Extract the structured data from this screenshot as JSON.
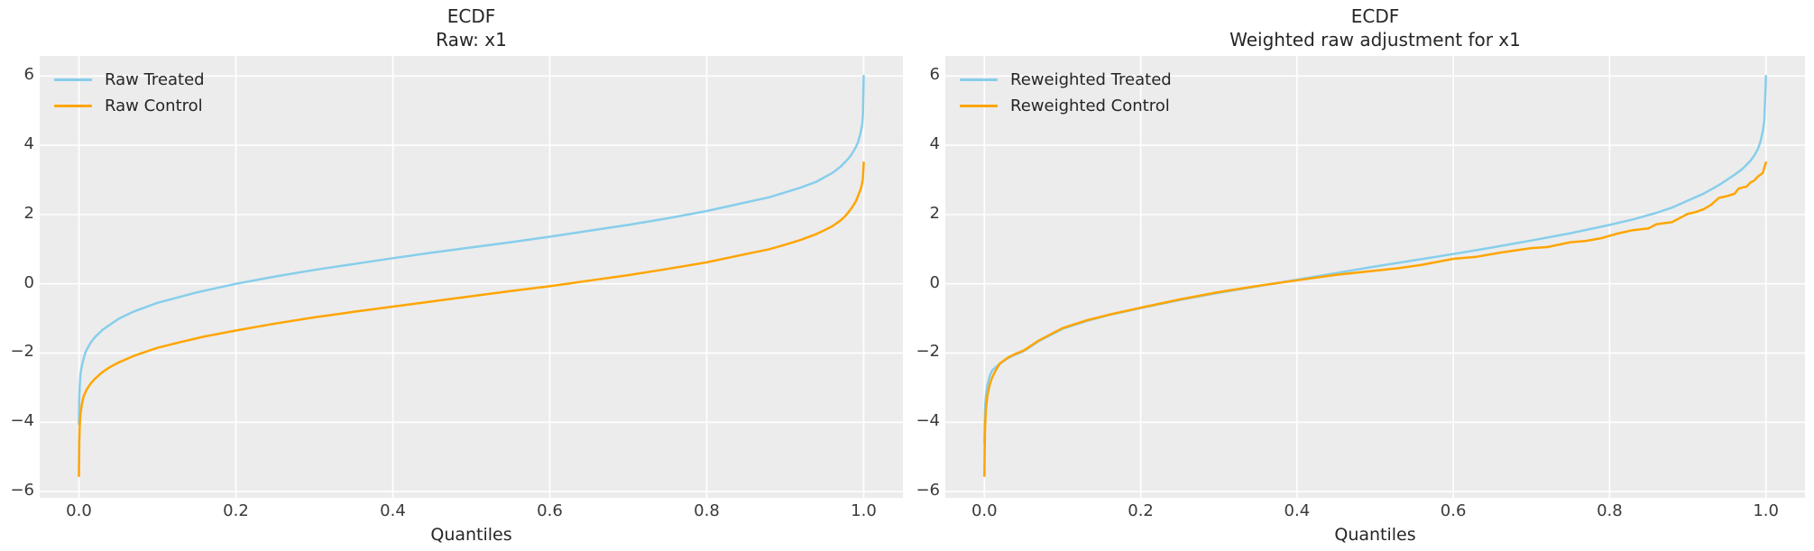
{
  "figure": {
    "background": "#ffffff",
    "axes_background": "#ececec",
    "grid_color": "#ffffff",
    "text_color": "#262626",
    "treated_color": "#87CEEB",
    "control_color": "#FFA500"
  },
  "chart_data": [
    {
      "type": "line",
      "title": "ECDF",
      "subtitle": "Raw: x1",
      "xlabel": "Quantiles",
      "ylabel": "",
      "xlim": [
        -0.05,
        1.05
      ],
      "ylim": [
        -6.18,
        6.58
      ],
      "xticks": [
        0.0,
        0.2,
        0.4,
        0.6,
        0.8,
        1.0
      ],
      "xtick_labels": [
        "0.0",
        "0.2",
        "0.4",
        "0.6",
        "0.8",
        "1.0"
      ],
      "yticks": [
        -6,
        -4,
        -2,
        0,
        2,
        4,
        6
      ],
      "ytick_labels": [
        "−6",
        "−4",
        "−2",
        "0",
        "2",
        "4",
        "6"
      ],
      "grid": true,
      "legend_position": "upper-left",
      "series": [
        {
          "name": "Raw Treated",
          "color": "#87CEEB",
          "points": [
            [
              0,
              -4.05
            ],
            [
              0.0005,
              -3.3
            ],
            [
              0.001,
              -2.95
            ],
            [
              0.002,
              -2.6
            ],
            [
              0.003,
              -2.45
            ],
            [
              0.005,
              -2.25
            ],
            [
              0.008,
              -2.0
            ],
            [
              0.01,
              -1.9
            ],
            [
              0.015,
              -1.7
            ],
            [
              0.02,
              -1.55
            ],
            [
              0.03,
              -1.33
            ],
            [
              0.05,
              -1.02
            ],
            [
              0.07,
              -0.8
            ],
            [
              0.1,
              -0.55
            ],
            [
              0.15,
              -0.25
            ],
            [
              0.2,
              0.0
            ],
            [
              0.25,
              0.21
            ],
            [
              0.3,
              0.4
            ],
            [
              0.35,
              0.57
            ],
            [
              0.4,
              0.74
            ],
            [
              0.45,
              0.9
            ],
            [
              0.5,
              1.05
            ],
            [
              0.55,
              1.2
            ],
            [
              0.6,
              1.36
            ],
            [
              0.65,
              1.53
            ],
            [
              0.7,
              1.7
            ],
            [
              0.75,
              1.89
            ],
            [
              0.8,
              2.1
            ],
            [
              0.85,
              2.35
            ],
            [
              0.88,
              2.5
            ],
            [
              0.9,
              2.64
            ],
            [
              0.92,
              2.78
            ],
            [
              0.94,
              2.95
            ],
            [
              0.96,
              3.2
            ],
            [
              0.97,
              3.37
            ],
            [
              0.98,
              3.6
            ],
            [
              0.985,
              3.75
            ],
            [
              0.99,
              3.95
            ],
            [
              0.993,
              4.1
            ],
            [
              0.996,
              4.35
            ],
            [
              0.998,
              4.6
            ],
            [
              0.999,
              4.85
            ],
            [
              1,
              6.0
            ]
          ]
        },
        {
          "name": "Raw Control",
          "color": "#FFA500",
          "points": [
            [
              0,
              -5.55
            ],
            [
              0.0005,
              -4.55
            ],
            [
              0.001,
              -4.1
            ],
            [
              0.002,
              -3.75
            ],
            [
              0.004,
              -3.45
            ],
            [
              0.006,
              -3.25
            ],
            [
              0.01,
              -3.05
            ],
            [
              0.015,
              -2.88
            ],
            [
              0.02,
              -2.75
            ],
            [
              0.03,
              -2.55
            ],
            [
              0.04,
              -2.4
            ],
            [
              0.05,
              -2.28
            ],
            [
              0.07,
              -2.08
            ],
            [
              0.1,
              -1.85
            ],
            [
              0.13,
              -1.68
            ],
            [
              0.16,
              -1.52
            ],
            [
              0.2,
              -1.35
            ],
            [
              0.25,
              -1.15
            ],
            [
              0.3,
              -0.97
            ],
            [
              0.35,
              -0.81
            ],
            [
              0.4,
              -0.66
            ],
            [
              0.45,
              -0.51
            ],
            [
              0.5,
              -0.36
            ],
            [
              0.55,
              -0.21
            ],
            [
              0.6,
              -0.07
            ],
            [
              0.65,
              0.09
            ],
            [
              0.7,
              0.25
            ],
            [
              0.75,
              0.43
            ],
            [
              0.8,
              0.62
            ],
            [
              0.85,
              0.86
            ],
            [
              0.88,
              1.0
            ],
            [
              0.9,
              1.13
            ],
            [
              0.92,
              1.27
            ],
            [
              0.94,
              1.44
            ],
            [
              0.95,
              1.55
            ],
            [
              0.96,
              1.66
            ],
            [
              0.97,
              1.82
            ],
            [
              0.975,
              1.92
            ],
            [
              0.98,
              2.05
            ],
            [
              0.985,
              2.2
            ],
            [
              0.99,
              2.38
            ],
            [
              0.993,
              2.55
            ],
            [
              0.996,
              2.72
            ],
            [
              0.998,
              2.9
            ],
            [
              0.999,
              3.05
            ],
            [
              1,
              3.5
            ]
          ]
        }
      ]
    },
    {
      "type": "line",
      "title": "ECDF",
      "subtitle": "Weighted raw adjustment for x1",
      "xlabel": "Quantiles",
      "ylabel": "",
      "xlim": [
        -0.05,
        1.05
      ],
      "ylim": [
        -6.18,
        6.58
      ],
      "xticks": [
        0.0,
        0.2,
        0.4,
        0.6,
        0.8,
        1.0
      ],
      "xtick_labels": [
        "0.0",
        "0.2",
        "0.4",
        "0.6",
        "0.8",
        "1.0"
      ],
      "yticks": [
        -6,
        -4,
        -2,
        0,
        2,
        4,
        6
      ],
      "ytick_labels": [
        "−6",
        "−4",
        "−2",
        "0",
        "2",
        "4",
        "6"
      ],
      "grid": true,
      "legend_position": "upper-left",
      "series": [
        {
          "name": "Reweighted Treated",
          "color": "#87CEEB",
          "points": [
            [
              0,
              -4.6
            ],
            [
              0.001,
              -3.5
            ],
            [
              0.002,
              -3.2
            ],
            [
              0.004,
              -2.9
            ],
            [
              0.007,
              -2.65
            ],
            [
              0.01,
              -2.5
            ],
            [
              0.015,
              -2.4
            ],
            [
              0.02,
              -2.3
            ],
            [
              0.03,
              -2.15
            ],
            [
              0.04,
              -2.04
            ],
            [
              0.05,
              -1.95
            ],
            [
              0.07,
              -1.65
            ],
            [
              0.1,
              -1.3
            ],
            [
              0.13,
              -1.08
            ],
            [
              0.16,
              -0.9
            ],
            [
              0.2,
              -0.7
            ],
            [
              0.25,
              -0.47
            ],
            [
              0.3,
              -0.26
            ],
            [
              0.35,
              -0.07
            ],
            [
              0.4,
              0.12
            ],
            [
              0.45,
              0.31
            ],
            [
              0.5,
              0.5
            ],
            [
              0.55,
              0.68
            ],
            [
              0.6,
              0.86
            ],
            [
              0.65,
              1.05
            ],
            [
              0.7,
              1.25
            ],
            [
              0.75,
              1.46
            ],
            [
              0.8,
              1.7
            ],
            [
              0.83,
              1.86
            ],
            [
              0.86,
              2.05
            ],
            [
              0.88,
              2.2
            ],
            [
              0.9,
              2.4
            ],
            [
              0.92,
              2.6
            ],
            [
              0.94,
              2.85
            ],
            [
              0.95,
              3.0
            ],
            [
              0.96,
              3.15
            ],
            [
              0.97,
              3.32
            ],
            [
              0.98,
              3.55
            ],
            [
              0.985,
              3.7
            ],
            [
              0.99,
              3.9
            ],
            [
              0.993,
              4.1
            ],
            [
              0.996,
              4.4
            ],
            [
              0.998,
              4.7
            ],
            [
              1,
              6.0
            ]
          ]
        },
        {
          "name": "Reweighted Control",
          "color": "#FFA500",
          "points": [
            [
              0,
              -5.55
            ],
            [
              0.0005,
              -4.5
            ],
            [
              0.001,
              -4.05
            ],
            [
              0.002,
              -3.6
            ],
            [
              0.004,
              -3.2
            ],
            [
              0.007,
              -2.9
            ],
            [
              0.01,
              -2.7
            ],
            [
              0.015,
              -2.48
            ],
            [
              0.02,
              -2.3
            ],
            [
              0.03,
              -2.13
            ],
            [
              0.04,
              -2.02
            ],
            [
              0.05,
              -1.93
            ],
            [
              0.07,
              -1.63
            ],
            [
              0.1,
              -1.28
            ],
            [
              0.13,
              -1.06
            ],
            [
              0.16,
              -0.89
            ],
            [
              0.2,
              -0.69
            ],
            [
              0.25,
              -0.45
            ],
            [
              0.3,
              -0.24
            ],
            [
              0.35,
              -0.06
            ],
            [
              0.4,
              0.1
            ],
            [
              0.45,
              0.26
            ],
            [
              0.5,
              0.38
            ],
            [
              0.53,
              0.45
            ],
            [
              0.56,
              0.55
            ],
            [
              0.6,
              0.72
            ],
            [
              0.63,
              0.78
            ],
            [
              0.66,
              0.9
            ],
            [
              0.7,
              1.03
            ],
            [
              0.72,
              1.06
            ],
            [
              0.75,
              1.2
            ],
            [
              0.77,
              1.24
            ],
            [
              0.79,
              1.32
            ],
            [
              0.81,
              1.45
            ],
            [
              0.83,
              1.55
            ],
            [
              0.85,
              1.6
            ],
            [
              0.86,
              1.72
            ],
            [
              0.88,
              1.78
            ],
            [
              0.9,
              2.02
            ],
            [
              0.91,
              2.07
            ],
            [
              0.92,
              2.15
            ],
            [
              0.93,
              2.28
            ],
            [
              0.94,
              2.48
            ],
            [
              0.95,
              2.53
            ],
            [
              0.96,
              2.6
            ],
            [
              0.965,
              2.75
            ],
            [
              0.97,
              2.78
            ],
            [
              0.975,
              2.8
            ],
            [
              0.98,
              2.92
            ],
            [
              0.985,
              2.98
            ],
            [
              0.99,
              3.1
            ],
            [
              0.993,
              3.15
            ],
            [
              0.996,
              3.2
            ],
            [
              0.998,
              3.35
            ],
            [
              1,
              3.5
            ]
          ]
        }
      ]
    }
  ]
}
